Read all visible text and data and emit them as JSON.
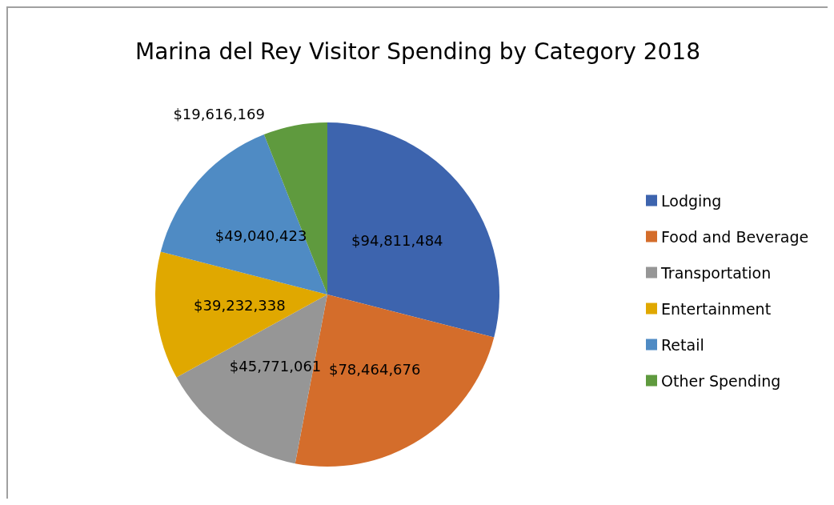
{
  "chart_data": {
    "type": "pie",
    "title": "Marina del Rey Visitor Spending by Category 2018",
    "categories": [
      "Lodging",
      "Food and Beverage",
      "Transportation",
      "Entertainment",
      "Retail",
      "Other Spending"
    ],
    "values": [
      94811484,
      78464676,
      45771061,
      39232338,
      49040423,
      19616169
    ],
    "value_labels": [
      "$94,811,484",
      "$78,464,676",
      "$45,771,061",
      "$39,232,338",
      "$49,040,423",
      "$19,616,169"
    ],
    "colors": [
      "#3d64ae",
      "#d46d2b",
      "#969696",
      "#e0a800",
      "#4f8bc4",
      "#5f9a3e"
    ],
    "legend": "right"
  }
}
